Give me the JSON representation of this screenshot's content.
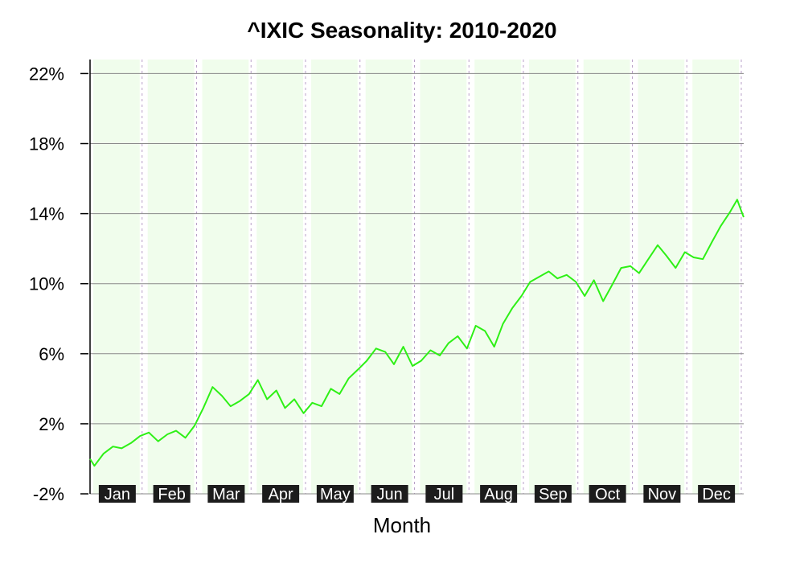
{
  "chart_data": {
    "type": "line",
    "title": "^IXIC Seasonality: 2010-2020",
    "xlabel": "Month",
    "ylabel": "",
    "ylim": [
      -2,
      22.8
    ],
    "yticks": [
      -2,
      2,
      6,
      10,
      14,
      18,
      22
    ],
    "ytick_labels": [
      "-2%",
      "2%",
      "6%",
      "10%",
      "14%",
      "18%",
      "22%"
    ],
    "categories": [
      "Jan",
      "Feb",
      "Mar",
      "Apr",
      "May",
      "Jun",
      "Jul",
      "Aug",
      "Sep",
      "Oct",
      "Nov",
      "Dec"
    ],
    "grid": true,
    "line_color": "#2ef016",
    "band_color": "#f0fdec",
    "label_bg_color": "#1c1c1c",
    "series": [
      {
        "x": [
          0,
          0.08,
          0.25,
          0.42,
          0.58,
          0.75,
          0.92,
          1.08,
          1.25,
          1.42,
          1.58,
          1.75,
          1.92,
          2.08,
          2.25,
          2.42,
          2.58,
          2.75,
          2.92,
          3.08,
          3.25,
          3.42,
          3.58,
          3.75,
          3.92,
          4.08,
          4.25,
          4.42,
          4.58,
          4.75,
          4.92,
          5.08,
          5.25,
          5.42,
          5.58,
          5.75,
          5.92,
          6.08,
          6.25,
          6.42,
          6.58,
          6.75,
          6.92,
          7.08,
          7.25,
          7.42,
          7.58,
          7.75,
          7.92,
          8.08,
          8.25,
          8.42,
          8.58,
          8.75,
          8.92,
          9.08,
          9.25,
          9.42,
          9.58,
          9.75,
          9.92,
          10.08,
          10.25,
          10.42,
          10.58,
          10.75,
          10.92,
          11.08,
          11.25,
          11.42,
          11.58,
          11.75,
          11.88,
          11.95,
          12.0
        ],
        "values": [
          0,
          -0.4,
          0.3,
          0.7,
          0.6,
          0.9,
          1.3,
          1.5,
          1.0,
          1.4,
          1.6,
          1.2,
          1.9,
          2.9,
          4.1,
          3.6,
          3.0,
          3.3,
          3.7,
          4.5,
          3.4,
          3.9,
          2.9,
          3.4,
          2.6,
          3.2,
          3.0,
          4.0,
          3.7,
          4.6,
          5.1,
          5.6,
          6.3,
          6.1,
          5.4,
          6.4,
          5.3,
          5.6,
          6.2,
          5.9,
          6.6,
          7.0,
          6.3,
          7.6,
          7.3,
          6.4,
          7.7,
          8.6,
          9.3,
          10.1,
          10.4,
          10.7,
          10.3,
          10.5,
          10.1,
          9.3,
          10.2,
          9.0,
          9.9,
          10.9,
          11.0,
          10.6,
          11.4,
          12.2,
          11.6,
          10.9,
          11.8,
          11.5,
          11.4,
          12.4,
          13.3,
          14.1,
          14.8,
          14.2,
          13.8
        ]
      }
    ]
  }
}
